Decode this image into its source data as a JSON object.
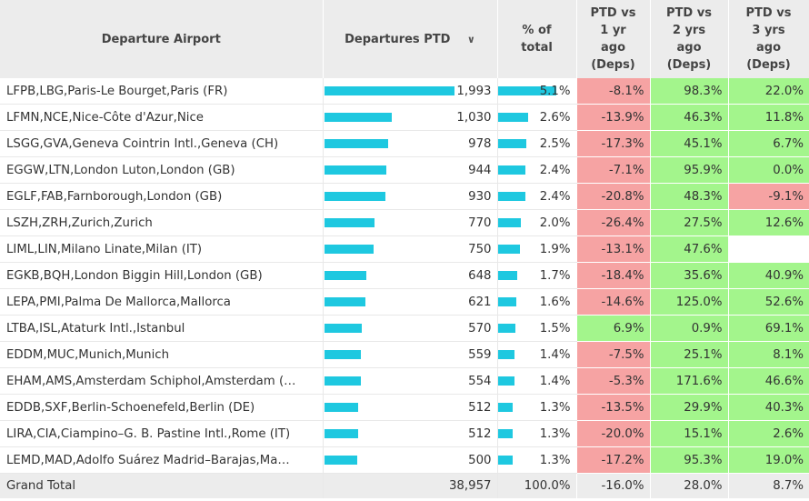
{
  "headers": {
    "airport": "Departure Airport",
    "departures": "Departures PTD",
    "sort_icon": "chevron-down-icon",
    "pct_line1": "% of",
    "pct_line2": "total",
    "ptd1_lines": [
      "PTD vs",
      "1 yr",
      "ago",
      "(Deps)"
    ],
    "ptd2_lines": [
      "PTD vs",
      "2 yrs",
      "ago",
      "(Deps)"
    ],
    "ptd3_lines": [
      "PTD vs",
      "3 yrs",
      "ago",
      "(Deps)"
    ]
  },
  "colors": {
    "bar": "#1ec8e0",
    "negative": "#f6a3a3",
    "positive": "#a3f58c",
    "header_bg": "#ececec"
  },
  "rows": [
    {
      "airport": "LFPB,LBG,Paris-Le Bourget,Paris (FR)",
      "departures": "1,993",
      "dep_value": 1993,
      "pct": "5.1%",
      "pct_value": 5.1,
      "ptd1": "-8.1%",
      "ptd2": "98.3%",
      "ptd3": "22.0%"
    },
    {
      "airport": "LFMN,NCE,Nice-Côte d'Azur,Nice",
      "departures": "1,030",
      "dep_value": 1030,
      "pct": "2.6%",
      "pct_value": 2.6,
      "ptd1": "-13.9%",
      "ptd2": "46.3%",
      "ptd3": "11.8%"
    },
    {
      "airport": "LSGG,GVA,Geneva Cointrin Intl.,Geneva (CH)",
      "departures": "978",
      "dep_value": 978,
      "pct": "2.5%",
      "pct_value": 2.5,
      "ptd1": "-17.3%",
      "ptd2": "45.1%",
      "ptd3": "6.7%"
    },
    {
      "airport": "EGGW,LTN,London Luton,London (GB)",
      "departures": "944",
      "dep_value": 944,
      "pct": "2.4%",
      "pct_value": 2.4,
      "ptd1": "-7.1%",
      "ptd2": "95.9%",
      "ptd3": "0.0%"
    },
    {
      "airport": "EGLF,FAB,Farnborough,London (GB)",
      "departures": "930",
      "dep_value": 930,
      "pct": "2.4%",
      "pct_value": 2.4,
      "ptd1": "-20.8%",
      "ptd2": "48.3%",
      "ptd3": "-9.1%"
    },
    {
      "airport": "LSZH,ZRH,Zurich,Zurich",
      "departures": "770",
      "dep_value": 770,
      "pct": "2.0%",
      "pct_value": 2.0,
      "ptd1": "-26.4%",
      "ptd2": "27.5%",
      "ptd3": "12.6%"
    },
    {
      "airport": "LIML,LIN,Milano Linate,Milan (IT)",
      "departures": "750",
      "dep_value": 750,
      "pct": "1.9%",
      "pct_value": 1.9,
      "ptd1": "-13.1%",
      "ptd2": "47.6%",
      "ptd3": ""
    },
    {
      "airport": "EGKB,BQH,London Biggin Hill,London (GB)",
      "departures": "648",
      "dep_value": 648,
      "pct": "1.7%",
      "pct_value": 1.7,
      "ptd1": "-18.4%",
      "ptd2": "35.6%",
      "ptd3": "40.9%"
    },
    {
      "airport": "LEPA,PMI,Palma De Mallorca,Mallorca",
      "departures": "621",
      "dep_value": 621,
      "pct": "1.6%",
      "pct_value": 1.6,
      "ptd1": "-14.6%",
      "ptd2": "125.0%",
      "ptd3": "52.6%"
    },
    {
      "airport": "LTBA,ISL,Ataturk Intl.,Istanbul",
      "departures": "570",
      "dep_value": 570,
      "pct": "1.5%",
      "pct_value": 1.5,
      "ptd1": "6.9%",
      "ptd2": "0.9%",
      "ptd3": "69.1%"
    },
    {
      "airport": "EDDM,MUC,Munich,Munich",
      "departures": "559",
      "dep_value": 559,
      "pct": "1.4%",
      "pct_value": 1.4,
      "ptd1": "-7.5%",
      "ptd2": "25.1%",
      "ptd3": "8.1%"
    },
    {
      "airport": "EHAM,AMS,Amsterdam Schiphol,Amsterdam (…",
      "departures": "554",
      "dep_value": 554,
      "pct": "1.4%",
      "pct_value": 1.4,
      "ptd1": "-5.3%",
      "ptd2": "171.6%",
      "ptd3": "46.6%"
    },
    {
      "airport": "EDDB,SXF,Berlin-Schoenefeld,Berlin (DE)",
      "departures": "512",
      "dep_value": 512,
      "pct": "1.3%",
      "pct_value": 1.3,
      "ptd1": "-13.5%",
      "ptd2": "29.9%",
      "ptd3": "40.3%"
    },
    {
      "airport": "LIRA,CIA,Ciampino–G. B. Pastine Intl.,Rome (IT)",
      "departures": "512",
      "dep_value": 512,
      "pct": "1.3%",
      "pct_value": 1.3,
      "ptd1": "-20.0%",
      "ptd2": "15.1%",
      "ptd3": "2.6%"
    },
    {
      "airport": "LEMD,MAD,Adolfo Suárez Madrid–Barajas,Ma…",
      "departures": "500",
      "dep_value": 500,
      "pct": "1.3%",
      "pct_value": 1.3,
      "ptd1": "-17.2%",
      "ptd2": "95.3%",
      "ptd3": "19.0%"
    }
  ],
  "total": {
    "label": "Grand Total",
    "departures": "38,957",
    "pct": "100.0%",
    "ptd1": "-16.0%",
    "ptd2": "28.0%",
    "ptd3": "8.7%"
  }
}
